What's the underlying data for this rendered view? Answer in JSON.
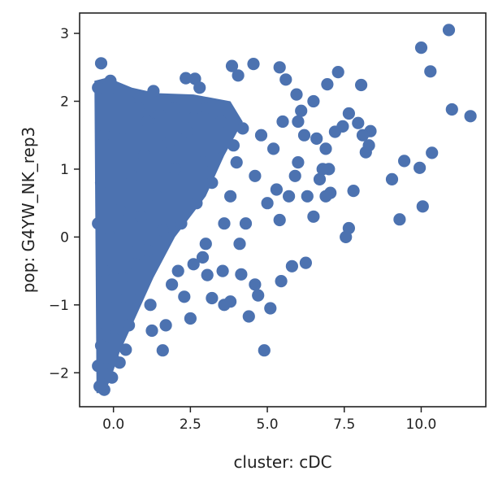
{
  "chart_data": {
    "type": "scatter",
    "title": "",
    "xlabel": "cluster: cDC",
    "ylabel": "pop: G4YW_NK_rep3",
    "xlim": [
      -1.1,
      12.1
    ],
    "ylim": [
      -2.5,
      3.3
    ],
    "x_ticks": [
      0.0,
      2.5,
      5.0,
      7.5,
      10.0
    ],
    "x_tick_labels": [
      "0.0",
      "2.5",
      "5.0",
      "7.5",
      "10.0"
    ],
    "y_ticks": [
      -2,
      -1,
      0,
      1,
      2,
      3
    ],
    "y_tick_labels": [
      "−2",
      "−1",
      "0",
      "1",
      "2",
      "3"
    ],
    "grid": false,
    "legend": "none",
    "marker_color": "#4c72b0",
    "series": [
      {
        "points": [
          [
            10.9,
            3.05
          ],
          [
            10.0,
            2.79
          ],
          [
            10.3,
            2.44
          ],
          [
            11.0,
            1.88
          ],
          [
            11.6,
            1.78
          ],
          [
            10.35,
            1.24
          ],
          [
            9.05,
            0.85
          ],
          [
            9.95,
            1.02
          ],
          [
            9.3,
            0.26
          ],
          [
            10.05,
            0.45
          ],
          [
            9.45,
            1.12
          ],
          [
            8.35,
            1.56
          ],
          [
            8.3,
            1.35
          ],
          [
            8.2,
            1.25
          ],
          [
            7.65,
            1.82
          ],
          [
            7.3,
            2.43
          ],
          [
            6.95,
            2.25
          ],
          [
            7.95,
            1.68
          ],
          [
            7.45,
            1.63
          ],
          [
            8.1,
            1.5
          ],
          [
            8.05,
            2.24
          ],
          [
            7.2,
            1.55
          ],
          [
            7.8,
            0.68
          ],
          [
            7.65,
            0.13
          ],
          [
            7.55,
            0.0
          ],
          [
            7.0,
            1.0
          ],
          [
            6.8,
            1.0
          ],
          [
            6.7,
            0.85
          ],
          [
            6.0,
            1.1
          ],
          [
            5.9,
            0.9
          ],
          [
            5.7,
            0.6
          ],
          [
            6.2,
            1.5
          ],
          [
            6.5,
            2.0
          ],
          [
            5.95,
            2.1
          ],
          [
            6.1,
            1.86
          ],
          [
            4.9,
            -1.67
          ],
          [
            5.1,
            -1.05
          ],
          [
            4.7,
            -0.86
          ],
          [
            4.4,
            -1.17
          ],
          [
            5.45,
            -0.65
          ],
          [
            5.8,
            -0.43
          ],
          [
            6.25,
            -0.38
          ],
          [
            4.6,
            -0.7
          ],
          [
            3.6,
            -1.0
          ],
          [
            3.2,
            -0.9
          ],
          [
            2.5,
            -1.2
          ],
          [
            3.8,
            -0.95
          ],
          [
            3.05,
            -0.56
          ],
          [
            3.55,
            -0.5
          ],
          [
            4.15,
            -0.55
          ],
          [
            2.9,
            -0.3
          ],
          [
            2.3,
            -0.88
          ],
          [
            1.6,
            -1.67
          ],
          [
            0.4,
            -1.66
          ],
          [
            0.2,
            -1.85
          ],
          [
            -0.05,
            -2.07
          ],
          [
            1.25,
            -1.38
          ],
          [
            0.55,
            -0.9
          ],
          [
            0.0,
            -1.8
          ],
          [
            -0.3,
            -2.25
          ],
          [
            -0.4,
            2.56
          ],
          [
            -0.1,
            2.3
          ],
          [
            2.35,
            2.34
          ],
          [
            2.65,
            2.33
          ],
          [
            3.85,
            2.52
          ],
          [
            4.55,
            2.55
          ],
          [
            5.4,
            2.5
          ],
          [
            5.6,
            2.32
          ],
          [
            4.05,
            2.38
          ],
          [
            2.8,
            2.2
          ],
          [
            1.3,
            2.15
          ],
          [
            0.5,
            2.0
          ],
          [
            -0.5,
            2.2
          ],
          [
            -0.2,
            2.1
          ],
          [
            0.8,
            1.9
          ],
          [
            1.5,
            1.8
          ],
          [
            2.0,
            1.9
          ],
          [
            3.0,
            1.9
          ],
          [
            3.5,
            1.7
          ],
          [
            4.2,
            1.6
          ],
          [
            4.8,
            1.5
          ],
          [
            5.2,
            1.3
          ],
          [
            5.5,
            1.7
          ],
          [
            6.0,
            1.7
          ],
          [
            6.6,
            1.45
          ],
          [
            6.9,
            1.3
          ],
          [
            6.3,
            0.6
          ],
          [
            6.5,
            0.3
          ],
          [
            6.9,
            0.6
          ],
          [
            7.05,
            0.65
          ],
          [
            5.4,
            0.25
          ],
          [
            5.0,
            0.5
          ],
          [
            4.3,
            0.2
          ],
          [
            3.8,
            0.6
          ],
          [
            3.2,
            0.8
          ],
          [
            2.7,
            0.5
          ],
          [
            2.2,
            0.2
          ],
          [
            1.6,
            0.1
          ],
          [
            1.1,
            -0.2
          ],
          [
            0.7,
            -0.4
          ],
          [
            0.3,
            -0.6
          ],
          [
            0.1,
            -0.9
          ],
          [
            -0.2,
            -1.3
          ],
          [
            -0.4,
            -1.6
          ],
          [
            -0.5,
            -1.9
          ],
          [
            -0.45,
            -2.2
          ],
          [
            -0.35,
            -2.0
          ],
          [
            0.6,
            0.9
          ],
          [
            1.0,
            1.2
          ],
          [
            1.8,
            1.4
          ],
          [
            2.4,
            1.55
          ],
          [
            3.3,
            1.3
          ],
          [
            4.0,
            1.1
          ],
          [
            4.6,
            0.9
          ],
          [
            5.3,
            0.7
          ],
          [
            -0.3,
            1.5
          ],
          [
            -0.4,
            0.8
          ],
          [
            -0.5,
            0.2
          ],
          [
            -0.3,
            -0.5
          ],
          [
            0.2,
            0.4
          ],
          [
            0.9,
            0.3
          ],
          [
            1.4,
            0.6
          ],
          [
            2.0,
            1.0
          ],
          [
            2.9,
            1.1
          ],
          [
            3.6,
            0.2
          ],
          [
            4.1,
            -0.1
          ],
          [
            2.6,
            -0.4
          ],
          [
            1.9,
            -0.7
          ],
          [
            1.2,
            -1.0
          ],
          [
            0.5,
            -1.3
          ],
          [
            0.0,
            -1.5
          ],
          [
            1.7,
            -1.3
          ],
          [
            2.1,
            -0.5
          ],
          [
            3.0,
            -0.1
          ],
          [
            0.8,
            -0.1
          ],
          [
            -0.1,
            0.0
          ],
          [
            0.3,
            1.6
          ],
          [
            1.1,
            1.7
          ],
          [
            2.6,
            1.75
          ],
          [
            3.9,
            1.35
          ]
        ]
      }
    ]
  }
}
